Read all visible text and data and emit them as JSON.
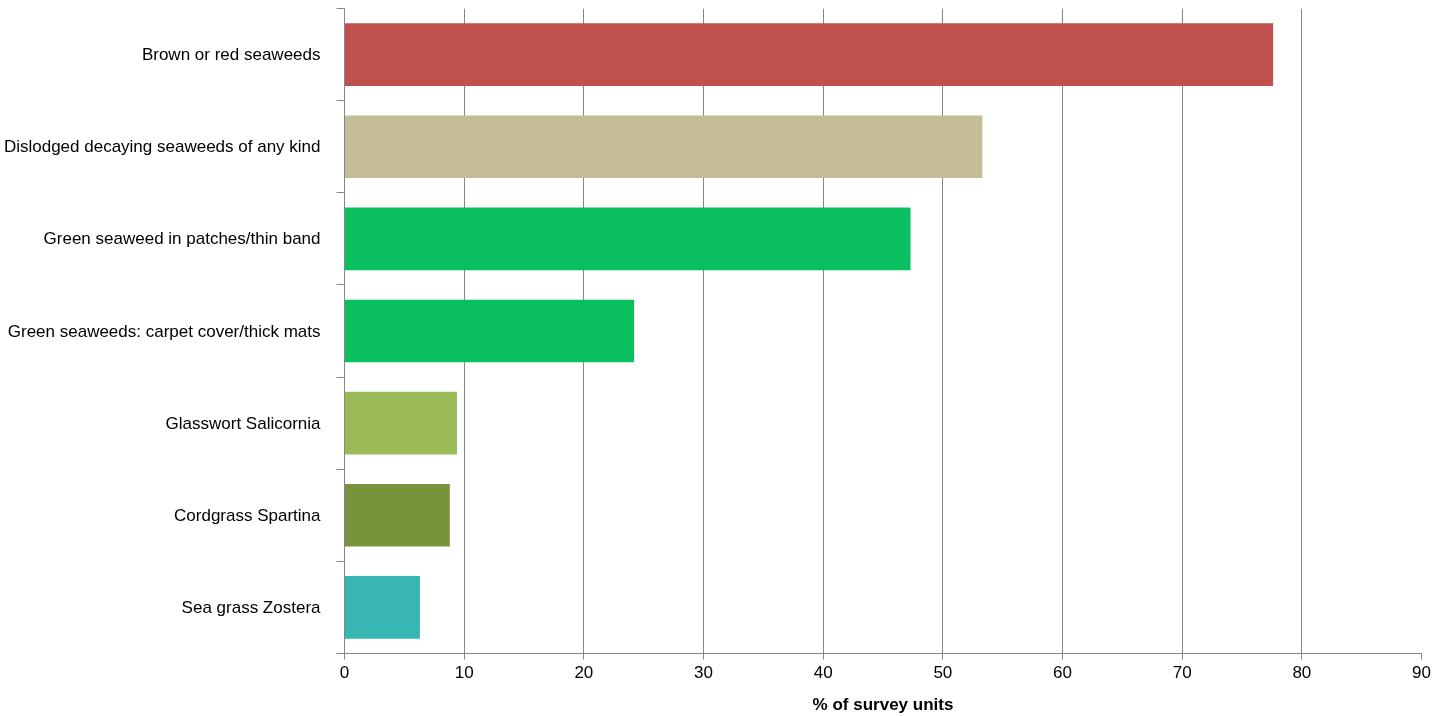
{
  "chart_data": {
    "type": "bar",
    "orientation": "horizontal",
    "xlabel": "% of survey units",
    "categories": [
      "Brown or red seaweeds",
      "Dislodged decaying seaweeds of any kind",
      "Green seaweed in patches/thin band",
      "Green seaweeds: carpet cover/thick mats",
      "Glasswort Salicornia",
      "Cordgrass Spartina",
      "Sea grass Zostera"
    ],
    "values": [
      77.6,
      53.3,
      47.3,
      24.2,
      9.4,
      8.8,
      6.3
    ],
    "colors": [
      "#c0504d",
      "#c4bd97",
      "#0abf5f",
      "#0abf5f",
      "#9bbb59",
      "#77933c",
      "#38b6b4"
    ],
    "xlim": [
      0,
      90
    ],
    "xticks": [
      0,
      10,
      20,
      30,
      40,
      50,
      60,
      70,
      80,
      90
    ],
    "grid": "x"
  }
}
